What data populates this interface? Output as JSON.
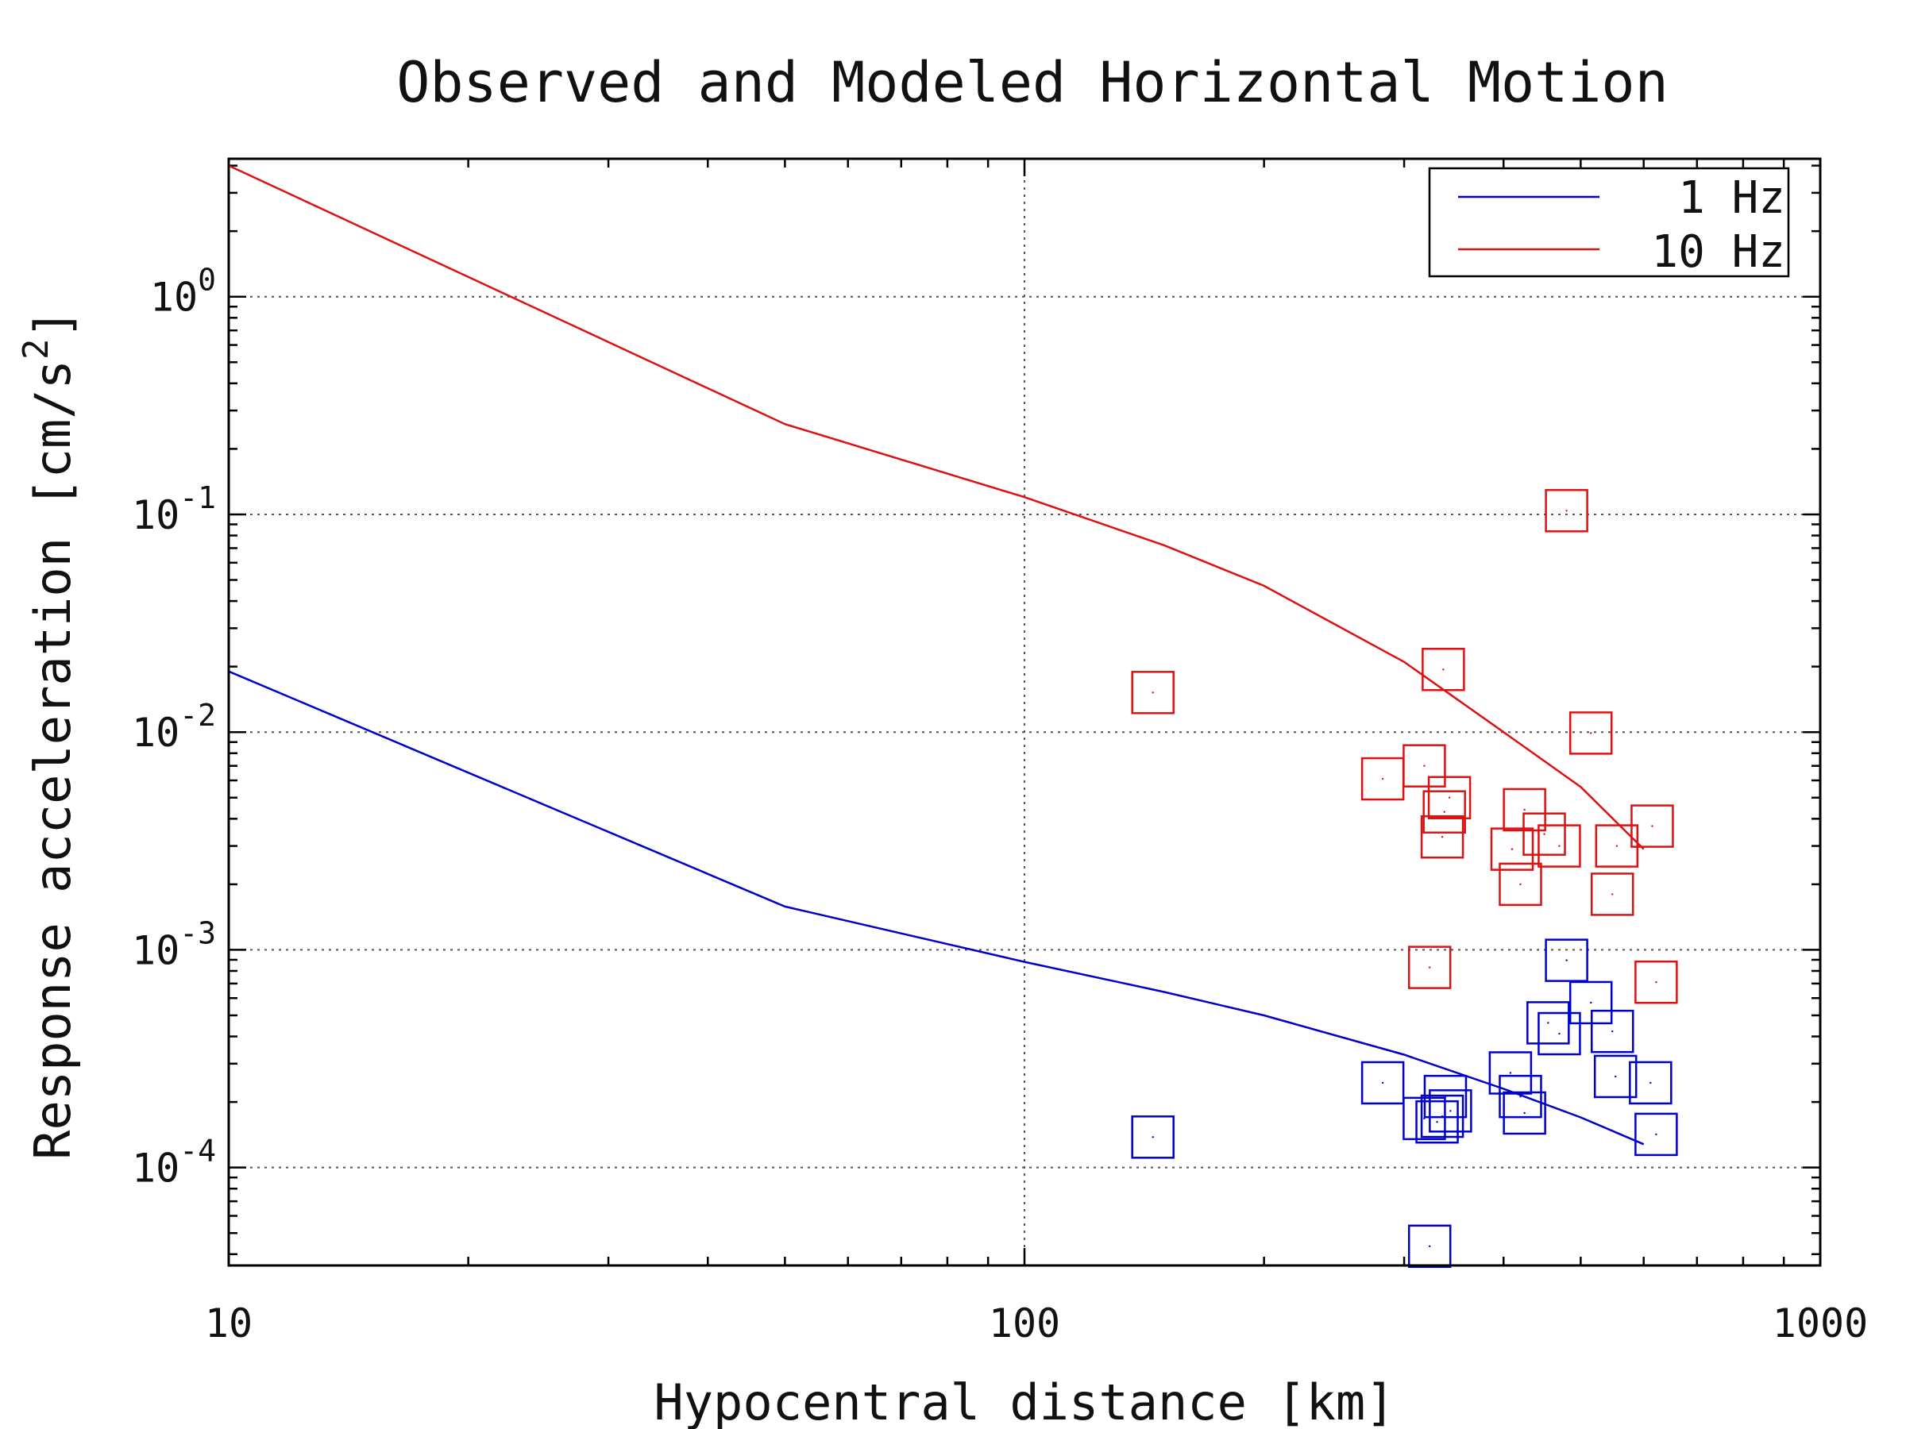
{
  "chart_data": {
    "type": "line",
    "title": "Observed and Modeled Horizontal Motion",
    "xlabel": "Hypocentral distance [km]",
    "ylabel_main": "Response acceleration [cm/s",
    "ylabel_sup": "2",
    "ylabel_end": "]",
    "xscale": "log",
    "yscale": "log",
    "xlim": [
      10,
      1000
    ],
    "ylim": [
      3.55e-05,
      4.3
    ],
    "grid": true,
    "legend_position": "top-right",
    "x_ticks": [
      {
        "value": 10,
        "label": "10"
      },
      {
        "value": 100,
        "label": "100"
      },
      {
        "value": 1000,
        "label": "1000"
      }
    ],
    "y_ticks": [
      {
        "value": 1,
        "base": "10",
        "exp": "0"
      },
      {
        "value": 0.1,
        "base": "10",
        "exp": "-1"
      },
      {
        "value": 0.01,
        "base": "10",
        "exp": "-2"
      },
      {
        "value": 0.001,
        "base": "10",
        "exp": "-3"
      },
      {
        "value": 0.0001,
        "base": "10",
        "exp": "-4"
      }
    ],
    "series": [
      {
        "name": "1 Hz",
        "color": "#0000cc",
        "line": [
          [
            10,
            0.019
          ],
          [
            50,
            0.00158
          ],
          [
            100,
            0.00088
          ],
          [
            150,
            0.00064
          ],
          [
            200,
            0.0005
          ],
          [
            300,
            0.00033
          ],
          [
            400,
            0.00023
          ],
          [
            500,
            0.00017
          ],
          [
            600,
            0.000128
          ]
        ],
        "points": [
          [
            145,
            0.000138
          ],
          [
            282,
            0.000245
          ],
          [
            318,
            0.000168
          ],
          [
            323,
            4.35e-05
          ],
          [
            330,
            0.000162
          ],
          [
            335,
            0.000172
          ],
          [
            338,
            0.000212
          ],
          [
            343,
            0.000182
          ],
          [
            408,
            0.000272
          ],
          [
            420,
            0.000212
          ],
          [
            425,
            0.000178
          ],
          [
            455,
            0.000462
          ],
          [
            470,
            0.000412
          ],
          [
            480,
            0.000895
          ],
          [
            515,
            0.000572
          ],
          [
            548,
            0.000422
          ],
          [
            553,
            0.000262
          ],
          [
            612,
            0.000245
          ],
          [
            622,
            0.000142
          ]
        ]
      },
      {
        "name": "10 Hz",
        "color": "#dd1111",
        "line": [
          [
            10,
            4
          ],
          [
            50,
            0.26
          ],
          [
            100,
            0.12
          ],
          [
            150,
            0.072
          ],
          [
            200,
            0.047
          ],
          [
            300,
            0.021
          ],
          [
            400,
            0.01
          ],
          [
            500,
            0.0056
          ],
          [
            600,
            0.0029
          ]
        ],
        "points": [
          [
            145,
            0.0152
          ],
          [
            282,
            0.0061
          ],
          [
            318,
            0.007
          ],
          [
            323,
            0.00083
          ],
          [
            335,
            0.0033
          ],
          [
            336,
            0.0194
          ],
          [
            337,
            0.0043
          ],
          [
            342,
            0.005
          ],
          [
            410,
            0.0029
          ],
          [
            420,
            0.002
          ],
          [
            425,
            0.0044
          ],
          [
            450,
            0.0034
          ],
          [
            470,
            0.003
          ],
          [
            480,
            0.104
          ],
          [
            515,
            0.0099
          ],
          [
            548,
            0.0018
          ],
          [
            555,
            0.003
          ],
          [
            615,
            0.0037
          ],
          [
            622,
            0.00071
          ]
        ]
      }
    ]
  }
}
